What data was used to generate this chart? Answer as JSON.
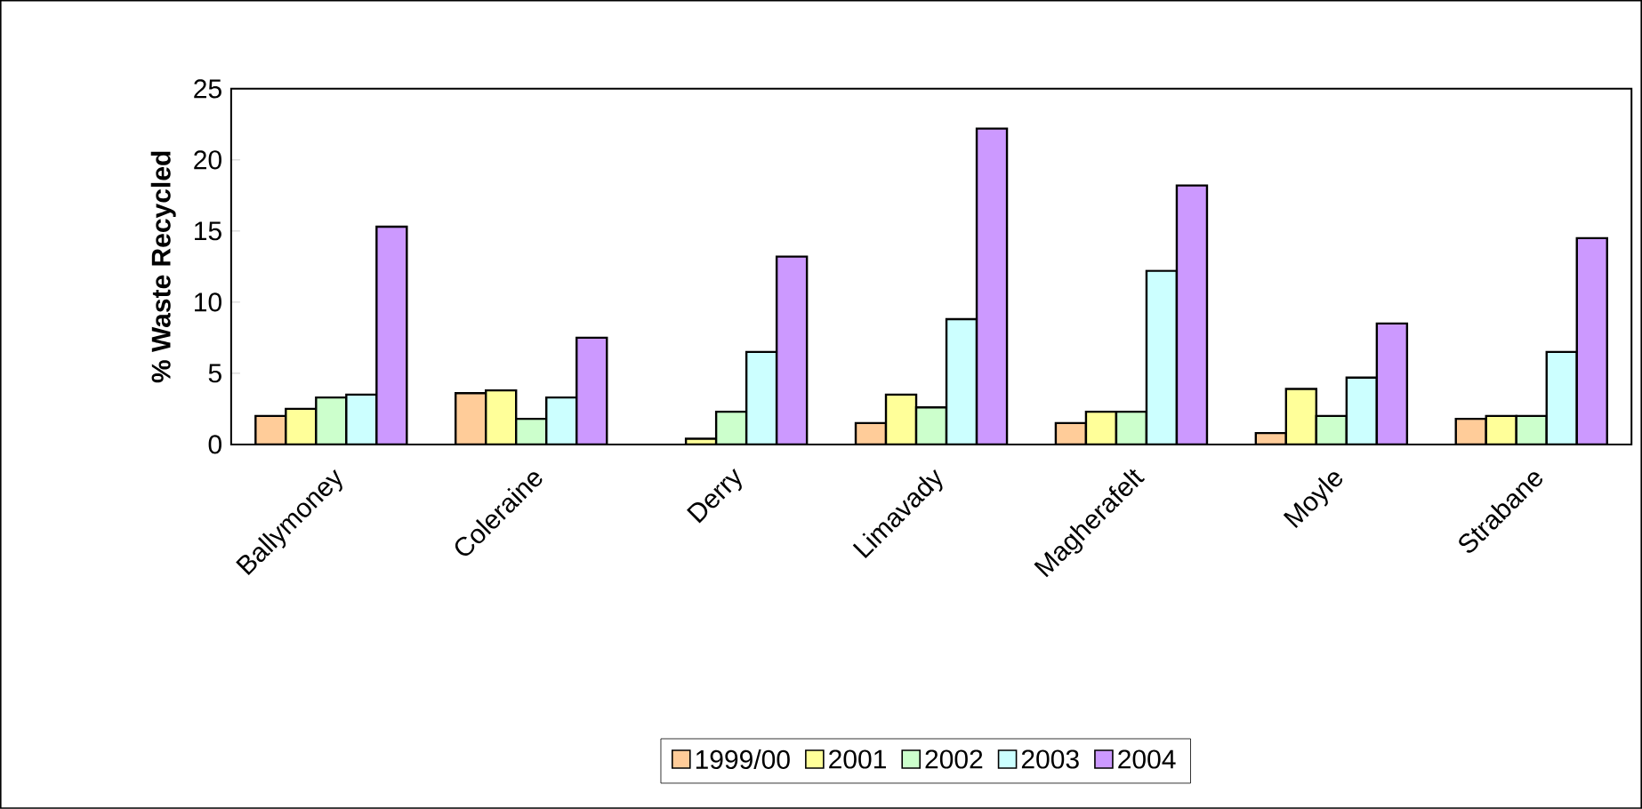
{
  "chart_data": {
    "type": "bar",
    "ylabel": "% Waste Recycled",
    "categories": [
      "Ballymoney",
      "Coleraine",
      "Derry",
      "Limavady",
      "Magherafelt",
      "Moyle",
      "Strabane"
    ],
    "series": [
      {
        "name": "1999/00",
        "color": "#ffcc99",
        "values": [
          2.0,
          3.6,
          null,
          1.5,
          1.5,
          0.8,
          1.8
        ]
      },
      {
        "name": "2001",
        "color": "#ffff99",
        "values": [
          2.5,
          3.8,
          0.4,
          3.5,
          2.3,
          3.9,
          2.0
        ]
      },
      {
        "name": "2002",
        "color": "#ccffcc",
        "values": [
          3.3,
          1.8,
          2.3,
          2.6,
          2.3,
          2.0,
          2.0
        ]
      },
      {
        "name": "2003",
        "color": "#ccffff",
        "values": [
          3.5,
          3.3,
          6.5,
          8.8,
          12.2,
          4.7,
          6.5
        ]
      },
      {
        "name": "2004",
        "color": "#cc99ff",
        "values": [
          15.3,
          7.5,
          13.2,
          22.2,
          18.2,
          8.5,
          14.5
        ]
      }
    ],
    "ylim": [
      0,
      25
    ],
    "yticks": [
      0,
      5,
      10,
      15,
      20,
      25
    ],
    "grid": false,
    "legend": "bottom"
  }
}
